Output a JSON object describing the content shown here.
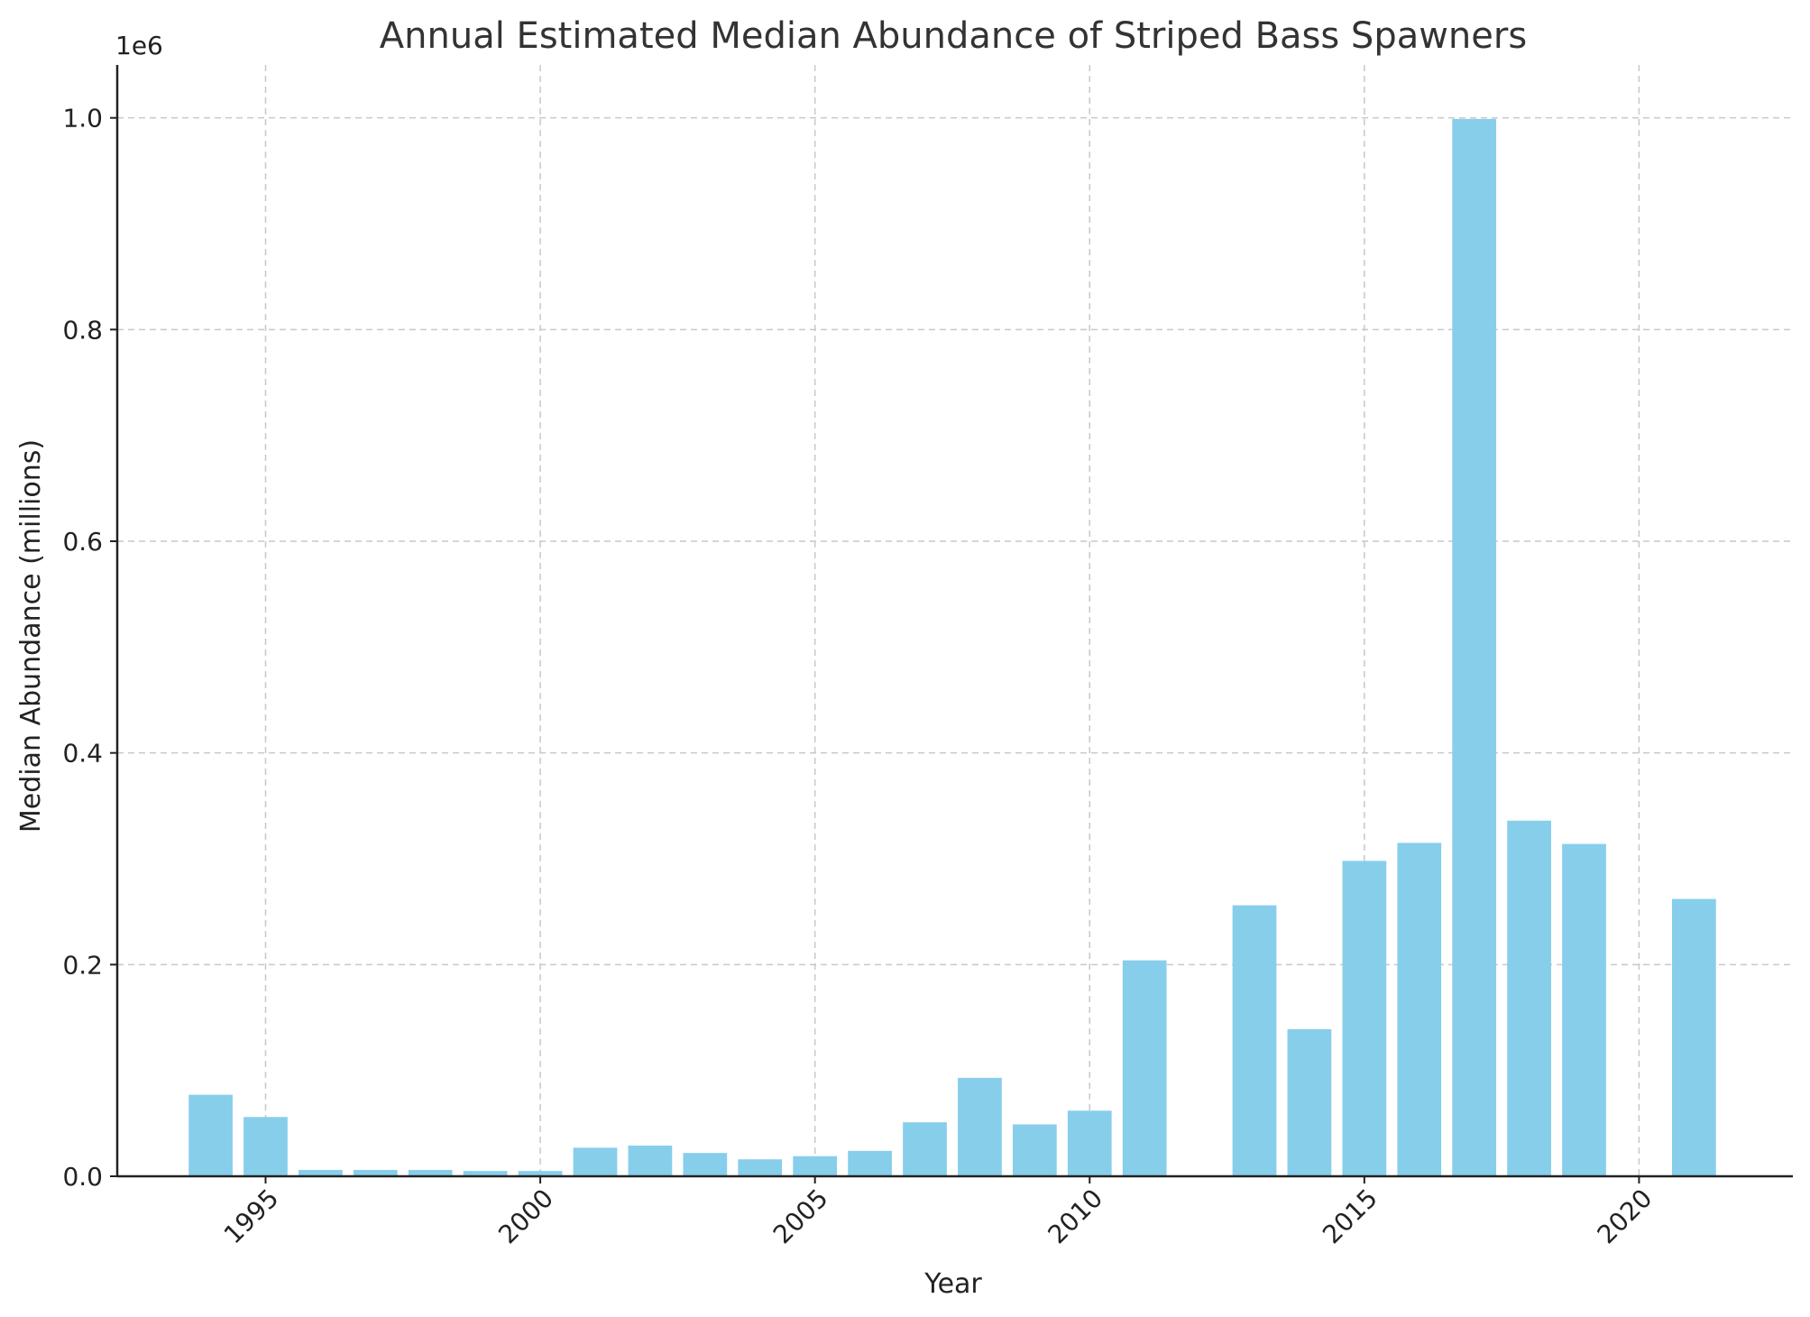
{
  "chart_data": {
    "type": "bar",
    "title": "Annual Estimated Median Abundance of Striped Bass Spawners",
    "xlabel": "Year",
    "ylabel": "Median Abundance (millions)",
    "y_offset_label": "1e6",
    "x": [
      1994,
      1995,
      1996,
      1997,
      1998,
      1999,
      2000,
      2001,
      2002,
      2003,
      2004,
      2005,
      2006,
      2007,
      2008,
      2009,
      2010,
      2011,
      2013,
      2014,
      2015,
      2016,
      2017,
      2018,
      2019,
      2021
    ],
    "values": [
      77000,
      56000,
      6000,
      6000,
      6000,
      5000,
      5000,
      27000,
      29000,
      22000,
      16000,
      19000,
      24000,
      51000,
      93000,
      49000,
      62000,
      204000,
      256000,
      139000,
      298000,
      315000,
      999000,
      336000,
      314000,
      262000
    ],
    "xlim": [
      1992.3,
      2022.8
    ],
    "ylim": [
      0,
      1050000
    ],
    "x_ticks": [
      1995,
      2000,
      2005,
      2010,
      2015,
      2020
    ],
    "x_tick_labels": [
      "1995",
      "2000",
      "2005",
      "2010",
      "2015",
      "2020"
    ],
    "y_ticks": [
      0,
      200000,
      400000,
      600000,
      800000,
      1000000
    ],
    "y_tick_labels": [
      "0.0",
      "0.2",
      "0.4",
      "0.6",
      "0.8",
      "1.0"
    ],
    "bar_color": "#87CEEB",
    "grid": true,
    "legend": "none"
  }
}
